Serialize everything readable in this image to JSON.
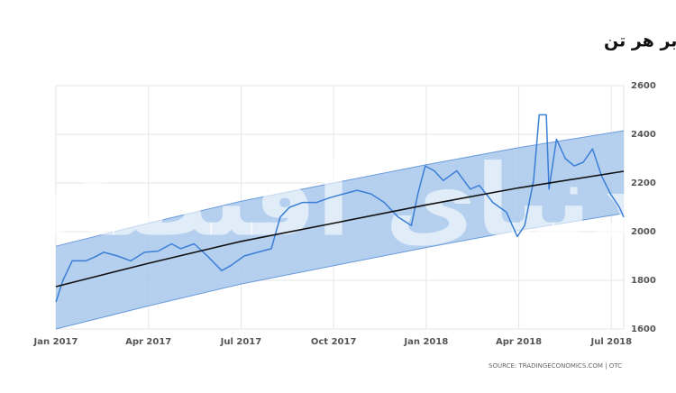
{
  "chart_data": {
    "type": "line",
    "title": "نوسان بهای آلومینیوم در بازارهای جهانی در یکسال اخیر– دلاربر هر تن",
    "source": "SOURCE: TRADINGECONOMICS.COM | OTC",
    "watermark": "دنیای اقتصاد",
    "xlim": [
      0,
      18.4
    ],
    "ylim": [
      1600,
      2600
    ],
    "xticks": [
      {
        "value": 0,
        "label": "Jan 2017"
      },
      {
        "value": 3,
        "label": "Apr 2017"
      },
      {
        "value": 6,
        "label": "Jul 2017"
      },
      {
        "value": 9,
        "label": "Oct 2017"
      },
      {
        "value": 12,
        "label": "Jan 2018"
      },
      {
        "value": 15,
        "label": "Apr 2018"
      },
      {
        "value": 18,
        "label": "Jul 2018"
      }
    ],
    "yticks": [
      1600,
      1800,
      2000,
      2200,
      2400,
      2600
    ],
    "grid": true,
    "band": {
      "color": "#a8c7ec",
      "edge_color": "#6a9bdc",
      "x": [
        0,
        3,
        6,
        9,
        12,
        15,
        18.4
      ],
      "upper": [
        1940,
        2035,
        2125,
        2200,
        2275,
        2345,
        2415
      ],
      "lower": [
        1600,
        1695,
        1785,
        1860,
        1935,
        2005,
        2075
      ]
    },
    "series": [
      {
        "color": "#3a7fd5",
        "x": [
          0,
          0.23,
          0.53,
          0.97,
          1.26,
          1.55,
          2.0,
          2.43,
          2.87,
          3.31,
          3.75,
          3.75,
          4.04,
          4.48,
          4.91,
          5.37,
          5.66,
          6.1,
          6.54,
          6.98,
          7.27,
          7.57,
          8.0,
          8.45,
          8.89,
          9.32,
          9.76,
          10.21,
          10.64,
          11.09,
          11.52,
          11.73,
          11.97,
          12.26,
          12.55,
          12.99,
          13.43,
          13.72,
          14.16,
          14.6,
          14.95,
          15.19,
          15.48,
          15.66,
          15.89,
          15.98,
          16.22,
          16.51,
          16.8,
          17.09,
          17.39,
          17.68,
          17.97,
          18.26,
          18.4
        ],
        "values": [
          1711,
          1800,
          1880,
          1880,
          1896,
          1915,
          1900,
          1880,
          1915,
          1920,
          1950,
          1950,
          1930,
          1950,
          1900,
          1840,
          1860,
          1900,
          1915,
          1930,
          2060,
          2100,
          2120,
          2120,
          2140,
          2155,
          2170,
          2155,
          2120,
          2060,
          2025,
          2155,
          2270,
          2250,
          2210,
          2250,
          2175,
          2190,
          2120,
          2080,
          1980,
          2025,
          2210,
          2480,
          2480,
          2175,
          2380,
          2300,
          2270,
          2285,
          2340,
          2230,
          2155,
          2100,
          2060
        ]
      },
      {
        "color": "#111111",
        "x": [
          0,
          3,
          6,
          9,
          12,
          15,
          18.4
        ],
        "values": [
          1774,
          1870,
          1960,
          2035,
          2110,
          2180,
          2248
        ]
      }
    ]
  }
}
